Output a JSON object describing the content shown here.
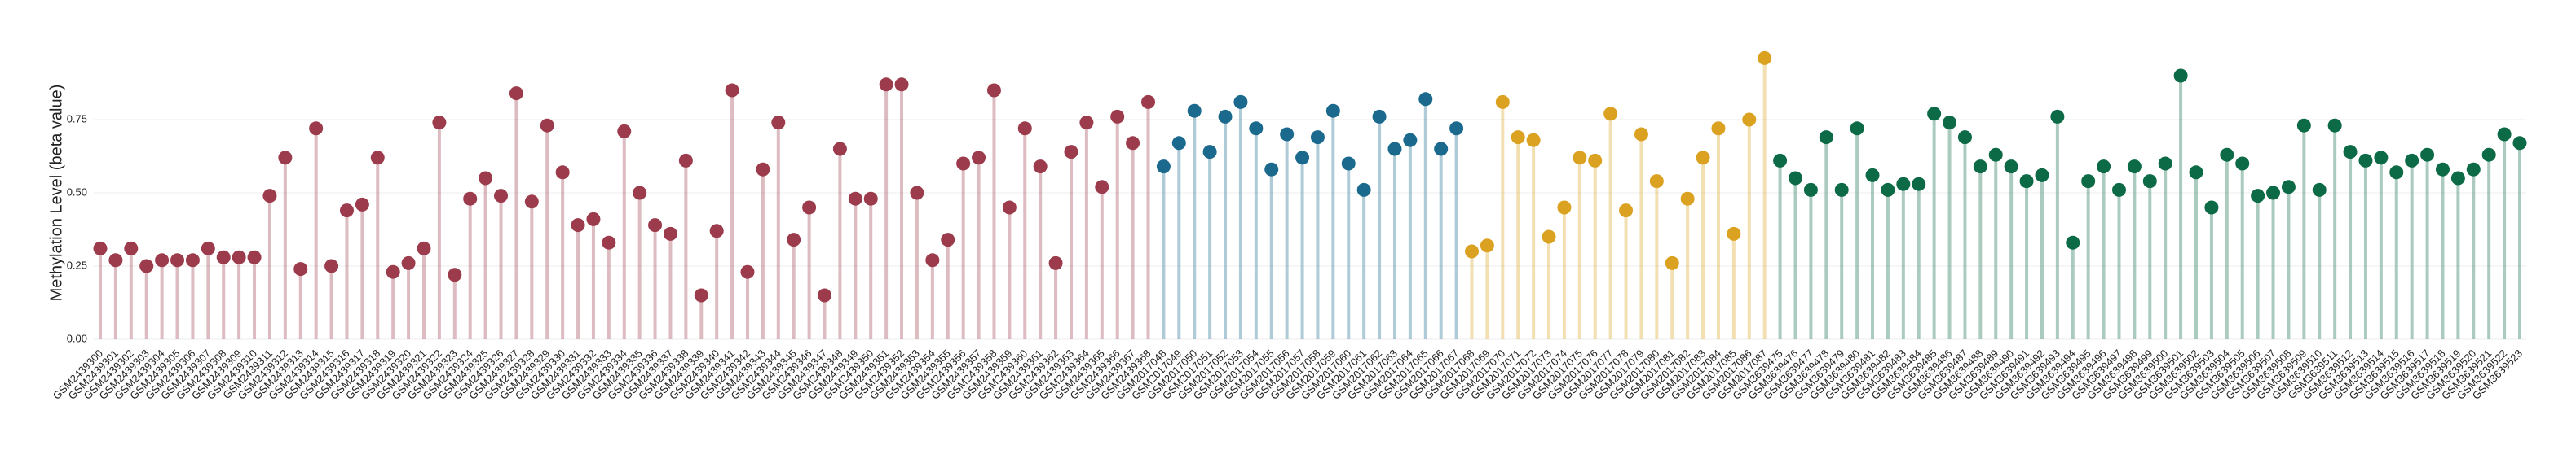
{
  "chart_data": {
    "type": "lollipop",
    "y_label": "Methylation Level (beta value)",
    "ylim": [
      0,
      1
    ],
    "yticks": [
      {
        "value": 0,
        "label": "0.00"
      },
      {
        "value": 0.25,
        "label": "0.25"
      },
      {
        "value": 0.5,
        "label": "0.50"
      },
      {
        "value": 0.75,
        "label": "0.75"
      }
    ],
    "grid": true,
    "series": [
      {
        "color": "#9b3b4c",
        "categories": [
          "GSM2439300",
          "GSM2439301",
          "GSM2439302",
          "GSM2439303",
          "GSM2439304",
          "GSM2439305",
          "GSM2439306",
          "GSM2439307",
          "GSM2439308",
          "GSM2439309",
          "GSM2439310",
          "GSM2439311",
          "GSM2439312",
          "GSM2439313",
          "GSM2439314",
          "GSM2439315",
          "GSM2439316",
          "GSM2439317",
          "GSM2439318",
          "GSM2439319",
          "GSM2439320",
          "GSM2439321",
          "GSM2439322",
          "GSM2439323",
          "GSM2439324",
          "GSM2439325",
          "GSM2439326",
          "GSM2439327",
          "GSM2439328",
          "GSM2439329",
          "GSM2439330",
          "GSM2439331",
          "GSM2439332",
          "GSM2439333",
          "GSM2439334",
          "GSM2439335",
          "GSM2439336",
          "GSM2439337",
          "GSM2439338",
          "GSM2439339",
          "GSM2439340",
          "GSM2439341",
          "GSM2439342",
          "GSM2439343",
          "GSM2439344",
          "GSM2439345",
          "GSM2439346",
          "GSM2439347",
          "GSM2439348",
          "GSM2439349",
          "GSM2439350",
          "GSM2439351",
          "GSM2439352",
          "GSM2439353",
          "GSM2439354",
          "GSM2439355",
          "GSM2439356",
          "GSM2439357",
          "GSM2439358",
          "GSM2439359",
          "GSM2439360",
          "GSM2439361",
          "GSM2439362",
          "GSM2439363",
          "GSM2439364",
          "GSM2439365",
          "GSM2439366",
          "GSM2439367",
          "GSM2439368"
        ],
        "values": [
          0.31,
          0.27,
          0.31,
          0.25,
          0.27,
          0.27,
          0.27,
          0.31,
          0.28,
          0.28,
          0.28,
          0.49,
          0.62,
          0.24,
          0.72,
          0.25,
          0.44,
          0.46,
          0.62,
          0.23,
          0.26,
          0.31,
          0.74,
          0.22,
          0.48,
          0.55,
          0.49,
          0.84,
          0.47,
          0.73,
          0.57,
          0.39,
          0.41,
          0.33,
          0.71,
          0.5,
          0.39,
          0.36,
          0.61,
          0.15,
          0.37,
          0.85,
          0.23,
          0.58,
          0.74,
          0.34,
          0.45,
          0.15,
          0.65,
          0.48,
          0.48,
          0.87,
          0.87,
          0.5,
          0.27,
          0.34,
          0.6,
          0.62,
          0.85,
          0.45,
          0.72,
          0.59,
          0.26,
          0.64,
          0.74,
          0.52,
          0.76,
          0.67,
          0.81
        ]
      },
      {
        "color": "#1b6a8e",
        "categories": [
          "GSM2017048",
          "GSM2017049",
          "GSM2017050",
          "GSM2017051",
          "GSM2017052",
          "GSM2017053",
          "GSM2017054",
          "GSM2017055",
          "GSM2017056",
          "GSM2017057",
          "GSM2017058",
          "GSM2017059",
          "GSM2017060",
          "GSM2017061",
          "GSM2017062",
          "GSM2017063",
          "GSM2017064",
          "GSM2017065",
          "GSM2017066",
          "GSM2017067"
        ],
        "values": [
          0.59,
          0.67,
          0.78,
          0.64,
          0.76,
          0.81,
          0.72,
          0.58,
          0.7,
          0.62,
          0.69,
          0.78,
          0.6,
          0.51,
          0.76,
          0.65,
          0.68,
          0.82,
          0.65,
          0.72
        ]
      },
      {
        "color": "#dba222",
        "categories": [
          "GSM2017068",
          "GSM2017069",
          "GSM2017070",
          "GSM2017071",
          "GSM2017072",
          "GSM2017073",
          "GSM2017074",
          "GSM2017075",
          "GSM2017076",
          "GSM2017077",
          "GSM2017078",
          "GSM2017079",
          "GSM2017080",
          "GSM2017081",
          "GSM2017082",
          "GSM2017083",
          "GSM2017084",
          "GSM2017085",
          "GSM2017086",
          "GSM2017087"
        ],
        "values": [
          0.3,
          0.32,
          0.81,
          0.69,
          0.68,
          0.35,
          0.45,
          0.62,
          0.61,
          0.77,
          0.44,
          0.7,
          0.54,
          0.26,
          0.48,
          0.62,
          0.72,
          0.36,
          0.75,
          0.96
        ]
      },
      {
        "color": "#0d6a47",
        "categories": [
          "GSM3639475",
          "GSM3639476",
          "GSM3639477",
          "GSM3639478",
          "GSM3639479",
          "GSM3639480",
          "GSM3639481",
          "GSM3639482",
          "GSM3639483",
          "GSM3639484",
          "GSM3639485",
          "GSM3639486",
          "GSM3639487",
          "GSM3639488",
          "GSM3639489",
          "GSM3639490",
          "GSM3639491",
          "GSM3639492",
          "GSM3639493",
          "GSM3639494",
          "GSM3639495",
          "GSM3639496",
          "GSM3639497",
          "GSM3639498",
          "GSM3639499",
          "GSM3639500",
          "GSM3639501",
          "GSM3639502",
          "GSM3639503",
          "GSM3639504",
          "GSM3639505",
          "GSM3639506",
          "GSM3639507",
          "GSM3639508",
          "GSM3639509",
          "GSM3639510",
          "GSM3639511",
          "GSM3639512",
          "GSM3639513",
          "GSM3639514",
          "GSM3639515",
          "GSM3639516",
          "GSM3639517",
          "GSM3639518",
          "GSM3639519",
          "GSM3639520",
          "GSM3639521",
          "GSM3639522",
          "GSM3639523"
        ],
        "values": [
          0.61,
          0.55,
          0.51,
          0.69,
          0.51,
          0.72,
          0.56,
          0.51,
          0.53,
          0.53,
          0.77,
          0.74,
          0.69,
          0.59,
          0.63,
          0.59,
          0.54,
          0.56,
          0.76,
          0.33,
          0.54,
          0.59,
          0.51,
          0.59,
          0.54,
          0.6,
          0.9,
          0.57,
          0.45,
          0.63,
          0.6,
          0.49,
          0.5,
          0.52,
          0.73,
          0.51,
          0.73,
          0.64,
          0.61,
          0.62,
          0.57,
          0.61,
          0.63,
          0.58,
          0.55,
          0.58,
          0.63,
          0.7,
          0.67
        ]
      }
    ]
  }
}
